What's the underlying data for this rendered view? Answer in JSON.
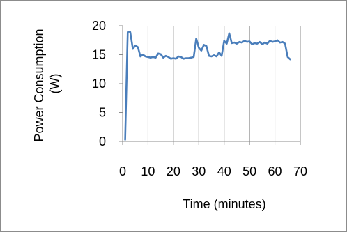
{
  "chart_data": {
    "type": "line",
    "xlabel": "Time (minutes)",
    "ylabel": "Power Consumption (W)",
    "ylabel_lines": [
      "Power Consumption",
      "(W)"
    ],
    "xlim": [
      0,
      70
    ],
    "ylim": [
      0,
      20
    ],
    "xticks": [
      0,
      10,
      20,
      30,
      40,
      50,
      60,
      70
    ],
    "yticks": [
      0,
      5,
      10,
      15,
      20
    ],
    "xtick_labels": [
      "0",
      "10",
      "20",
      "30",
      "40",
      "50",
      "60",
      "70"
    ],
    "ytick_labels": [
      "0",
      "5",
      "10",
      "15",
      "20"
    ],
    "grid": "vertical",
    "legend": "none",
    "colors": {
      "line": "#4a7ebb",
      "grid": "#8c8c8c",
      "axis": "#8c8c8c"
    },
    "series": [
      {
        "x": [
          1,
          1.5,
          2,
          2.5,
          3,
          4,
          5,
          6,
          7,
          8,
          9,
          10,
          11,
          12,
          13,
          14,
          15,
          16,
          17,
          18,
          19,
          20,
          21,
          22,
          23,
          24,
          25,
          26,
          27,
          28,
          29,
          30,
          31,
          32,
          33,
          34,
          35,
          36,
          37,
          38,
          39,
          40,
          41,
          42,
          43,
          44,
          45,
          46,
          47,
          48,
          49,
          50,
          51,
          52,
          53,
          54,
          55,
          56,
          57,
          58,
          59,
          60,
          61,
          62,
          63,
          64,
          65,
          66
        ],
        "values": [
          0.3,
          10,
          18.9,
          19.0,
          18.9,
          16.0,
          16.6,
          16.3,
          14.7,
          15.0,
          14.7,
          14.6,
          14.5,
          14.6,
          14.5,
          15.2,
          15.1,
          14.5,
          14.8,
          14.6,
          14.3,
          14.4,
          14.3,
          14.7,
          14.6,
          14.3,
          14.4,
          14.4,
          14.5,
          14.6,
          17.8,
          16.2,
          15.7,
          16.7,
          16.5,
          14.8,
          14.7,
          14.9,
          14.7,
          15.4,
          14.8,
          17.4,
          16.9,
          18.7,
          17.0,
          17.1,
          16.9,
          17.2,
          17.1,
          17.4,
          17.2,
          17.3,
          16.8,
          17.0,
          16.9,
          17.2,
          16.8,
          17.1,
          16.9,
          17.4,
          17.2,
          17.3,
          17.5,
          17.1,
          17.2,
          16.9,
          14.6,
          14.2
        ]
      }
    ]
  }
}
